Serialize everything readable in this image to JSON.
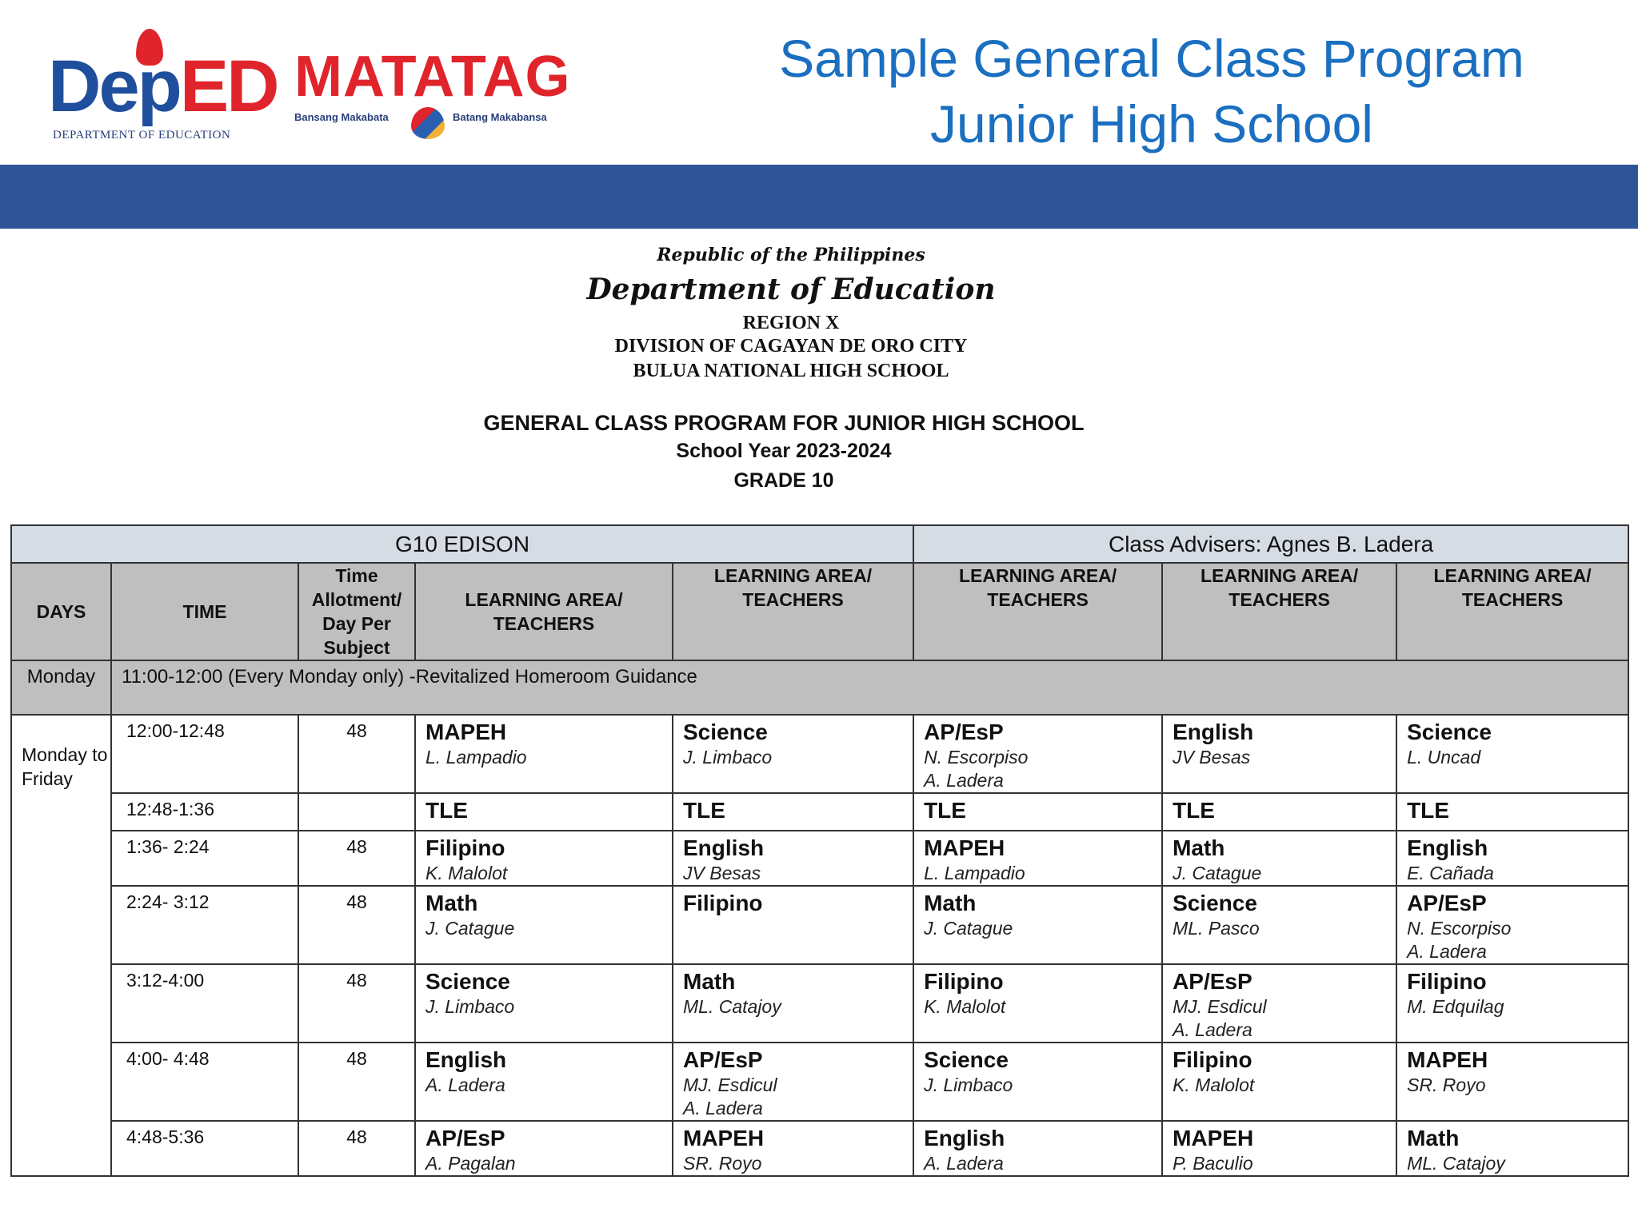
{
  "logos": {
    "deped": {
      "word_a": "Dep",
      "word_b": "ED",
      "subtitle": "DEPARTMENT OF EDUCATION"
    },
    "matatag": {
      "word": "MATATAG",
      "left_tag": "Bansang Makabata",
      "right_tag": "Batang Makabansa"
    }
  },
  "title": {
    "line1": "Sample General Class Program",
    "line2": "Junior High School"
  },
  "colors": {
    "title": "#1a6fc0",
    "band": "#2f5597",
    "header_bg": "#bfbfbf",
    "title_row_bg": "#d6dce4"
  },
  "letterhead": {
    "republic": "Republic of the Philippines",
    "department": "Department of Education",
    "region": "REGION X",
    "division": "DIVISION OF CAGAYAN DE ORO CITY",
    "school": "BULUA NATIONAL HIGH SCHOOL"
  },
  "program": {
    "title": "GENERAL CLASS PROGRAM FOR JUNIOR HIGH SCHOOL",
    "school_year": "School Year 2023-2024",
    "grade": "GRADE 10"
  },
  "table": {
    "section": "G10 EDISON",
    "adviser": "Class Advisers: Agnes B. Ladera",
    "headers": [
      "DAYS",
      "TIME",
      "Time Allotment/ Day Per Subject",
      "LEARNING AREA/ TEACHERS",
      "LEARNING AREA/ TEACHERS",
      "LEARNING AREA/ TEACHERS",
      "LEARNING AREA/ TEACHERS",
      "LEARNING AREA/ TEACHERS"
    ],
    "monday_row": {
      "day": "Monday",
      "text": "11:00-12:00 (Every Monday only) -Revitalized Homeroom Guidance"
    },
    "days_label": "Monday to Friday",
    "rows": [
      {
        "time": "12:00-12:48",
        "allotment": "48",
        "cells": [
          {
            "subject": "MAPEH",
            "teachers": [
              "L. Lampadio"
            ]
          },
          {
            "subject": "Science",
            "teachers": [
              "J. Limbaco"
            ]
          },
          {
            "subject": "AP/EsP",
            "teachers": [
              "N. Escorpiso",
              "A. Ladera"
            ]
          },
          {
            "subject": "English",
            "teachers": [
              "JV Besas"
            ]
          },
          {
            "subject": "Science",
            "teachers": [
              "L. Uncad"
            ]
          }
        ]
      },
      {
        "time": "12:48-1:36",
        "allotment": "",
        "cells": [
          {
            "subject": "TLE",
            "teachers": []
          },
          {
            "subject": "TLE",
            "teachers": []
          },
          {
            "subject": "TLE",
            "teachers": []
          },
          {
            "subject": "TLE",
            "teachers": []
          },
          {
            "subject": "TLE",
            "teachers": []
          }
        ]
      },
      {
        "time": "1:36- 2:24",
        "allotment": "48",
        "cells": [
          {
            "subject": "Filipino",
            "teachers": [
              "K. Malolot"
            ]
          },
          {
            "subject": "English",
            "teachers": [
              "JV Besas"
            ]
          },
          {
            "subject": "MAPEH",
            "teachers": [
              "L. Lampadio"
            ]
          },
          {
            "subject": "Math",
            "teachers": [
              "J. Catague"
            ]
          },
          {
            "subject": "English",
            "teachers": [
              "E. Cañada"
            ]
          }
        ]
      },
      {
        "time": "2:24- 3:12",
        "allotment": "48",
        "cells": [
          {
            "subject": "Math",
            "teachers": [
              "J. Catague"
            ]
          },
          {
            "subject": "Filipino",
            "teachers": []
          },
          {
            "subject": "Math",
            "teachers": [
              "J. Catague"
            ]
          },
          {
            "subject": "Science",
            "teachers": [
              "ML. Pasco"
            ]
          },
          {
            "subject": "AP/EsP",
            "teachers": [
              "N. Escorpiso",
              "A. Ladera"
            ]
          }
        ]
      },
      {
        "time": "3:12-4:00",
        "allotment": "48",
        "cells": [
          {
            "subject": "Science",
            "teachers": [
              "J. Limbaco"
            ]
          },
          {
            "subject": "Math",
            "teachers": [
              "ML. Catajoy"
            ]
          },
          {
            "subject": "Filipino",
            "teachers": [
              "K. Malolot"
            ]
          },
          {
            "subject": "AP/EsP",
            "teachers": [
              "MJ. Esdicul",
              "A. Ladera"
            ]
          },
          {
            "subject": "Filipino",
            "teachers": [
              "M. Edquilag"
            ]
          }
        ]
      },
      {
        "time": "4:00- 4:48",
        "allotment": "48",
        "cells": [
          {
            "subject": "English",
            "teachers": [
              "A. Ladera"
            ]
          },
          {
            "subject": "AP/EsP",
            "teachers": [
              "MJ. Esdicul",
              "A. Ladera"
            ]
          },
          {
            "subject": "Science",
            "teachers": [
              "J. Limbaco"
            ]
          },
          {
            "subject": "Filipino",
            "teachers": [
              "K. Malolot"
            ]
          },
          {
            "subject": "MAPEH",
            "teachers": [
              "SR. Royo"
            ]
          }
        ]
      },
      {
        "time": "4:48-5:36",
        "allotment": "48",
        "cells": [
          {
            "subject": "AP/EsP",
            "teachers": [
              "A. Pagalan"
            ]
          },
          {
            "subject": "MAPEH",
            "teachers": [
              "SR. Royo"
            ]
          },
          {
            "subject": "English",
            "teachers": [
              "A. Ladera"
            ]
          },
          {
            "subject": "MAPEH",
            "teachers": [
              "P. Baculio"
            ]
          },
          {
            "subject": "Math",
            "teachers": [
              "ML. Catajoy"
            ]
          }
        ]
      }
    ]
  }
}
